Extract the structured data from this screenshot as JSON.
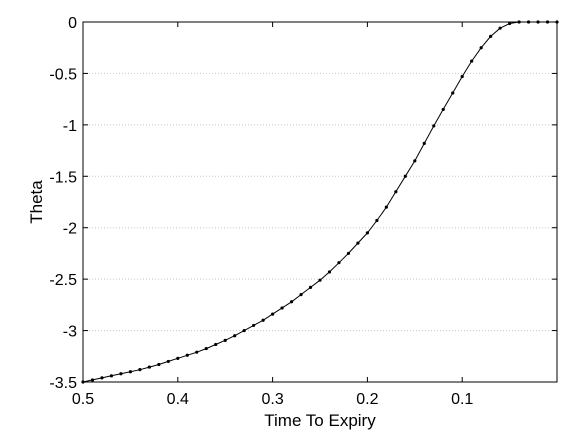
{
  "chart_data": {
    "type": "line",
    "title": "",
    "xlabel": "Time To Expiry",
    "ylabel": "Theta",
    "xlim": [
      0.5,
      0.0
    ],
    "x_reversed": true,
    "ylim": [
      -3.5,
      0
    ],
    "grid": {
      "y": true,
      "x": false
    },
    "x_ticks": [
      0.5,
      0.4,
      0.3,
      0.2,
      0.1
    ],
    "x_tick_labels": [
      "0.5",
      "0.4",
      "0.3",
      "0.2",
      "0.1"
    ],
    "y_ticks": [
      0,
      -0.5,
      -1,
      -1.5,
      -2,
      -2.5,
      -3,
      -3.5
    ],
    "y_tick_labels": [
      "0",
      "-0.5",
      "-1",
      "-1.5",
      "-2",
      "-2.5",
      "-3",
      "-3.5"
    ],
    "colors": {
      "line": "#000000",
      "grid": "#c8c8c8",
      "axes": "#000000"
    },
    "series": [
      {
        "marker": "dot",
        "x": [
          0.5,
          0.49,
          0.48,
          0.47,
          0.46,
          0.45,
          0.44,
          0.43,
          0.42,
          0.41,
          0.4,
          0.39,
          0.38,
          0.37,
          0.36,
          0.35,
          0.34,
          0.33,
          0.32,
          0.31,
          0.3,
          0.29,
          0.28,
          0.27,
          0.26,
          0.25,
          0.24,
          0.23,
          0.22,
          0.21,
          0.2,
          0.19,
          0.18,
          0.17,
          0.16,
          0.15,
          0.14,
          0.13,
          0.12,
          0.11,
          0.1,
          0.09,
          0.08,
          0.07,
          0.06,
          0.05,
          0.04,
          0.03,
          0.02,
          0.01,
          0.0
        ],
        "y": [
          -3.5,
          -3.48,
          -3.46,
          -3.44,
          -3.42,
          -3.4,
          -3.38,
          -3.355,
          -3.33,
          -3.3,
          -3.27,
          -3.24,
          -3.21,
          -3.175,
          -3.135,
          -3.095,
          -3.05,
          -3.0,
          -2.95,
          -2.9,
          -2.84,
          -2.78,
          -2.72,
          -2.65,
          -2.58,
          -2.51,
          -2.43,
          -2.34,
          -2.25,
          -2.15,
          -2.05,
          -1.93,
          -1.8,
          -1.65,
          -1.5,
          -1.35,
          -1.18,
          -1.01,
          -0.85,
          -0.69,
          -0.53,
          -0.38,
          -0.25,
          -0.14,
          -0.06,
          -0.015,
          0.0,
          0.0,
          0.0,
          0.0,
          0.0
        ]
      }
    ]
  }
}
